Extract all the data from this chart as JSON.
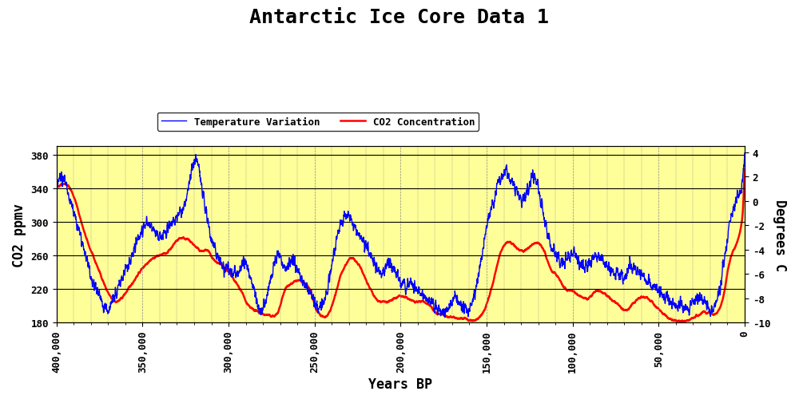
{
  "title": "Antarctic Ice Core Data 1",
  "xlabel": "Years BP",
  "ylabel_left": "CO2 ppmv",
  "ylabel_right": "Degrees C",
  "xlim": [
    400000,
    0
  ],
  "ylim_left": [
    180,
    390
  ],
  "ylim_right": [
    -10,
    4.5
  ],
  "yticks_left": [
    180,
    220,
    260,
    300,
    340,
    380
  ],
  "yticks_right": [
    -10,
    -8,
    -6,
    -4,
    -2,
    0,
    2,
    4
  ],
  "xticks": [
    400000,
    350000,
    300000,
    250000,
    200000,
    150000,
    100000,
    50000,
    0
  ],
  "background_color": "#FFFF99",
  "grid_color_h": "#000000",
  "grid_color_v": "#888888",
  "temp_color": "#0000FF",
  "co2_color": "#FF0000",
  "temp_label": "Temperature Variation",
  "co2_label": "CO2 Concentration",
  "legend_box_color": "#FFFFFF",
  "title_fontsize": 18,
  "label_fontsize": 12,
  "tick_fontsize": 9
}
